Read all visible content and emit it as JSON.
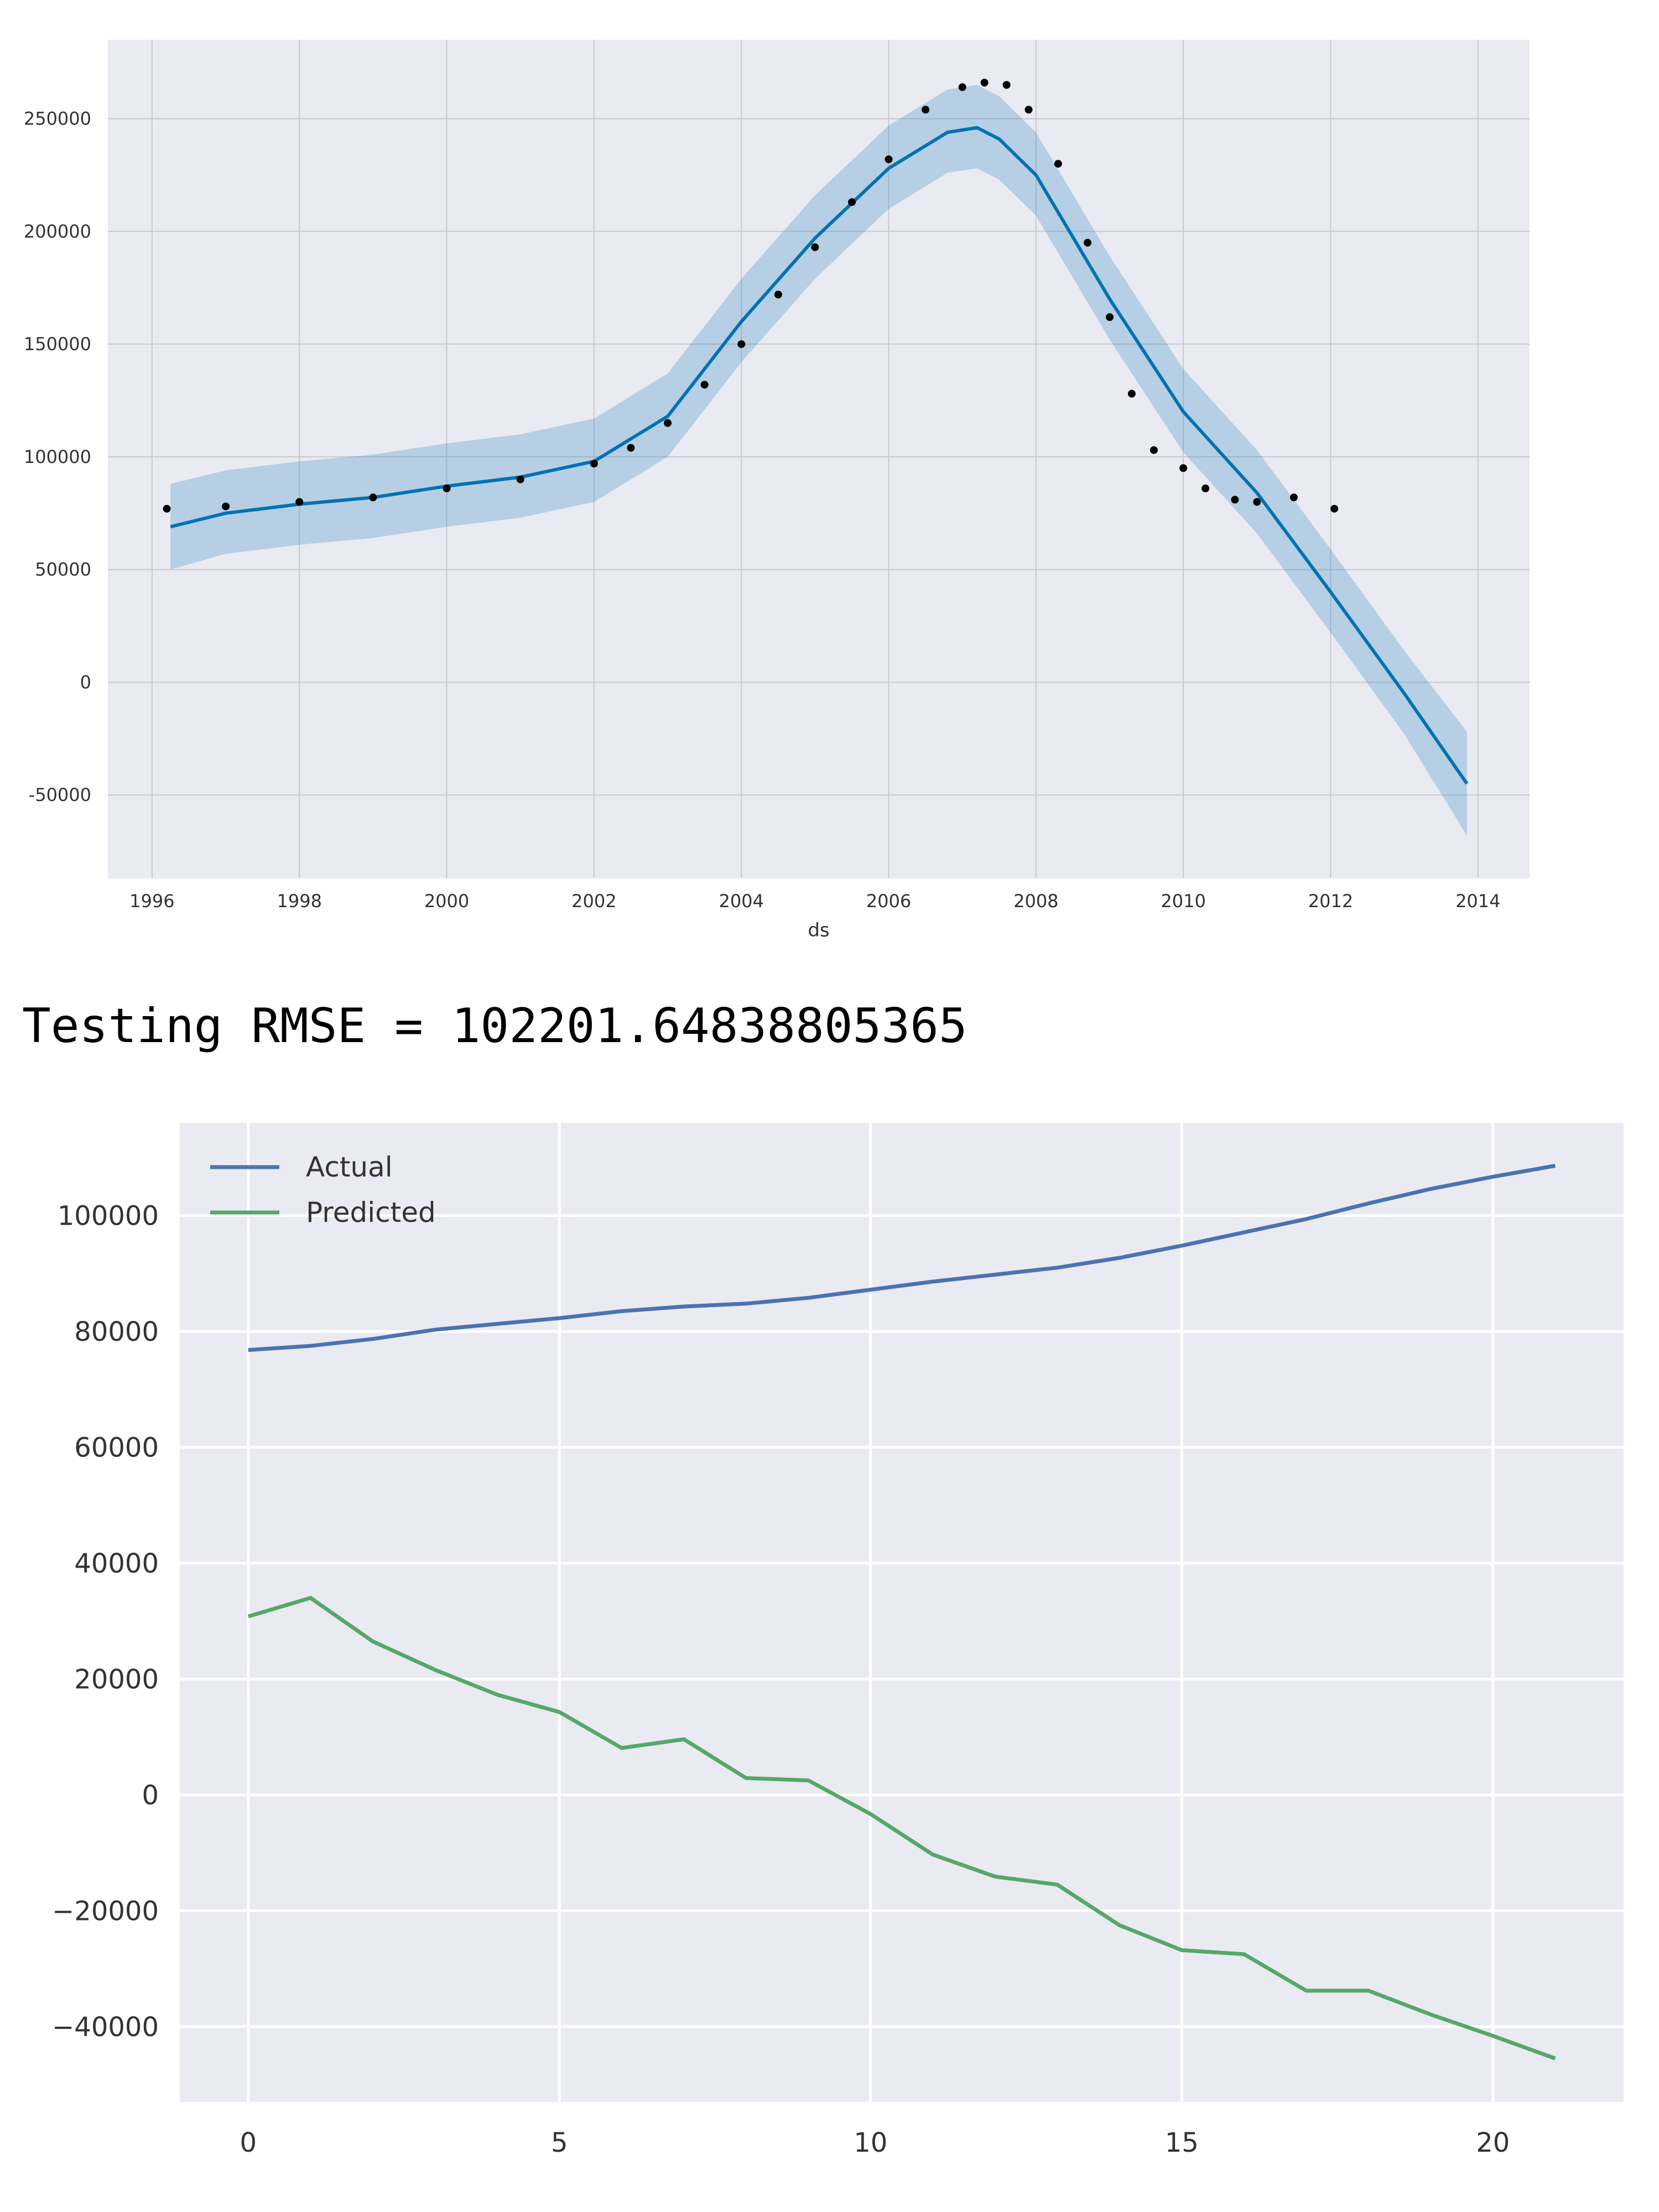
{
  "rmse": {
    "label": "Testing RMSE = ",
    "value": "102201.64838805365"
  },
  "chart_data": [
    {
      "type": "line",
      "title": "",
      "xlabel": "ds",
      "ylabel": "",
      "xlim": [
        1995.4,
        2014.7
      ],
      "ylim": [
        -87000,
        285000
      ],
      "x_ticks": [
        1996,
        1998,
        2000,
        2002,
        2004,
        2006,
        2008,
        2010,
        2012,
        2014
      ],
      "y_ticks": [
        -50000,
        0,
        50000,
        100000,
        150000,
        200000,
        250000
      ],
      "grid": true,
      "background": "#eaeaf2",
      "series": [
        {
          "role": "forecast",
          "color": "#0072b2",
          "x": [
            1996.25,
            1997,
            1998,
            1999,
            2000,
            2001,
            2002,
            2003,
            2004,
            2005,
            2006,
            2006.8,
            2007.2,
            2007.5,
            2008,
            2009,
            2010,
            2011,
            2012,
            2013,
            2013.85
          ],
          "y": [
            69000,
            75000,
            79000,
            82000,
            87000,
            91000,
            98000,
            118000,
            160000,
            197000,
            228000,
            244000,
            246000,
            241000,
            225000,
            170000,
            120000,
            84000,
            40000,
            -5000,
            -45000
          ]
        },
        {
          "role": "uncertainty-interval",
          "color": "#0072b2",
          "x": [
            1996.25,
            1997,
            1998,
            1999,
            2000,
            2001,
            2002,
            2003,
            2004,
            2005,
            2006,
            2006.8,
            2007.2,
            2007.5,
            2008,
            2009,
            2010,
            2011,
            2012,
            2013,
            2013.85
          ],
          "lower": [
            50000,
            57000,
            61000,
            64000,
            69000,
            73000,
            80000,
            100000,
            142000,
            179000,
            210000,
            226000,
            228000,
            223000,
            207000,
            152000,
            102000,
            66000,
            22000,
            -23000,
            -68000
          ],
          "upper": [
            88000,
            94000,
            98000,
            101000,
            106000,
            110000,
            117000,
            137000,
            179000,
            216000,
            247000,
            263000,
            265000,
            260000,
            244000,
            189000,
            139000,
            103000,
            59000,
            14000,
            -22000
          ]
        },
        {
          "role": "observed",
          "color": "#000000",
          "x": [
            1996.2,
            1997,
            1998,
            1999,
            2000,
            2001,
            2002,
            2002.5,
            2003,
            2003.5,
            2004,
            2004.5,
            2005,
            2005.5,
            2006,
            2006.5,
            2007,
            2007.3,
            2007.6,
            2007.9,
            2008.3,
            2008.7,
            2009.0,
            2009.3,
            2009.6,
            2010.0,
            2010.3,
            2010.7,
            2011.0,
            2011.5,
            2012.05
          ],
          "y": [
            77000,
            78000,
            80000,
            82000,
            86000,
            90000,
            97000,
            104000,
            115000,
            132000,
            150000,
            172000,
            193000,
            213000,
            232000,
            254000,
            264000,
            266000,
            265000,
            254000,
            230000,
            195000,
            162000,
            128000,
            103000,
            95000,
            86000,
            81000,
            80000,
            82000,
            77000
          ]
        }
      ]
    },
    {
      "type": "line",
      "title": "",
      "xlabel": "",
      "ylabel": "",
      "xlim": [
        -1.1,
        22.1
      ],
      "ylim": [
        -53000,
        116000
      ],
      "x_ticks": [
        0,
        5,
        10,
        15,
        20
      ],
      "y_ticks": [
        -40000,
        -20000,
        0,
        20000,
        40000,
        60000,
        80000,
        100000
      ],
      "grid": true,
      "background": "#eaeaf2",
      "legend": "top-left",
      "x": [
        0,
        1,
        2,
        3,
        4,
        5,
        6,
        7,
        8,
        9,
        10,
        11,
        12,
        13,
        14,
        15,
        16,
        17,
        18,
        19,
        20,
        21
      ],
      "series": [
        {
          "name": "Actual",
          "color": "#4c72b0",
          "values": [
            76800,
            77500,
            78700,
            80300,
            81300,
            82300,
            83500,
            84300,
            84800,
            85800,
            87200,
            88600,
            89800,
            91000,
            92700,
            94800,
            97100,
            99400,
            102100,
            104600,
            106700,
            108600
          ]
        },
        {
          "name": "Predicted",
          "color": "#55a868",
          "values": [
            30800,
            34000,
            26500,
            21600,
            17300,
            14300,
            8100,
            9600,
            2900,
            2500,
            -3300,
            -10300,
            -14100,
            -15500,
            -22500,
            -26800,
            -27500,
            -33800,
            -33800,
            -37900,
            -41600,
            -45500
          ]
        }
      ]
    }
  ]
}
